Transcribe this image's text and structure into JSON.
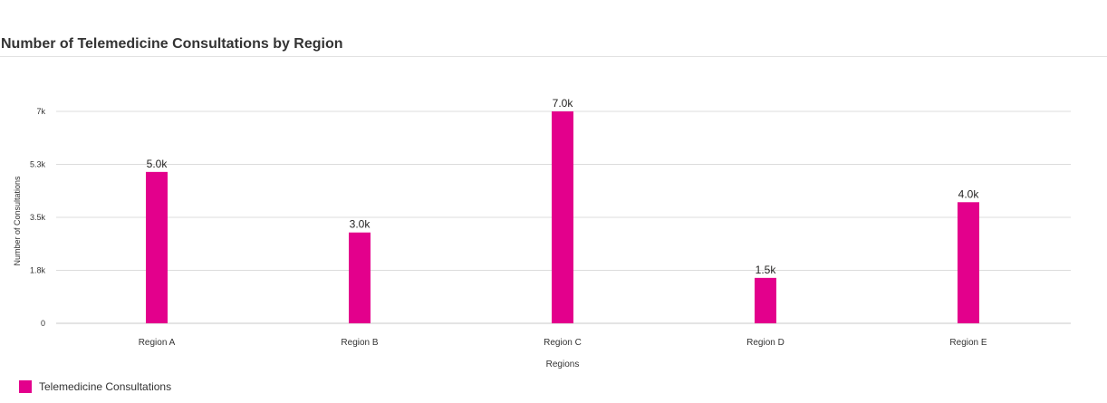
{
  "chart_data": {
    "type": "bar",
    "title": "Number of Telemedicine Consultations by Region",
    "xlabel": "Regions",
    "ylabel": "Number of Consultations",
    "categories": [
      "Region A",
      "Region B",
      "Region C",
      "Region D",
      "Region E"
    ],
    "series": [
      {
        "name": "Telemedicine Consultations",
        "values": [
          5000,
          3000,
          7000,
          1500,
          4000
        ],
        "data_labels": [
          "5.0k",
          "3.0k",
          "7.0k",
          "1.5k",
          "4.0k"
        ],
        "color": "#e3008c"
      }
    ],
    "ylim": [
      0,
      7000
    ],
    "yticks": [
      0,
      1750,
      3500,
      5250,
      7000
    ],
    "ytick_labels": [
      "0",
      "1.8k",
      "3.5k",
      "5.3k",
      "7k"
    ],
    "grid": true,
    "legend_position": "bottom-left"
  }
}
